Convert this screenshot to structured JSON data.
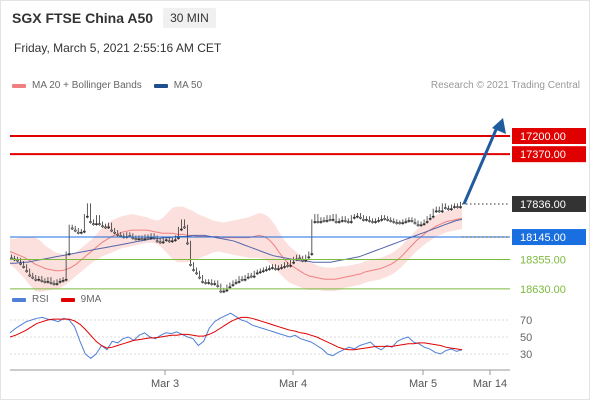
{
  "header": {
    "title": "SGX FTSE China A50",
    "timeframe": "30 MIN",
    "datetime": "Friday, March 5, 2021 2:55:16 AM CET"
  },
  "legend": {
    "items": [
      {
        "label": "MA 20 + Bollinger Bands",
        "color": "#f08080"
      },
      {
        "label": "MA 50",
        "color": "#1f4e8c"
      }
    ],
    "credit": "Research © 2021 Trading Central"
  },
  "rsi_legend": {
    "items": [
      {
        "label": "RSI",
        "color": "#4f7fd6"
      },
      {
        "label": "9MA",
        "color": "#e00000"
      }
    ]
  },
  "colors": {
    "resistance": "#7cba3d",
    "pivot": "#1a6fe0",
    "support": "#e00000",
    "price_tag": "#333333",
    "bollinger_fill": "#fbd5d2",
    "ma20": "#f08080",
    "ma50": "#5566aa",
    "arrow": "#1f5b9e",
    "candle": "#333333"
  },
  "chart_data": [
    {
      "type": "candlestick",
      "title": "SGX FTSE China A50",
      "timeframe": "30 MIN",
      "x_ticks": [
        "Mar 3",
        "Mar 4",
        "Mar 5",
        "Mar 14"
      ],
      "ylim": [
        17100,
        18750
      ],
      "levels": [
        {
          "label": "18630.00",
          "value": 18630,
          "kind": "resistance"
        },
        {
          "label": "18355.00",
          "value": 18355,
          "kind": "resistance"
        },
        {
          "label": "18145.00",
          "value": 18145,
          "kind": "pivot"
        },
        {
          "label": "17836.00",
          "value": 17836,
          "kind": "last"
        },
        {
          "label": "17370.00",
          "value": 17370,
          "kind": "support"
        },
        {
          "label": "17200.00",
          "value": 17200,
          "kind": "support"
        }
      ],
      "close": [
        18340,
        18350,
        18360,
        18390,
        18420,
        18460,
        18500,
        18520,
        18540,
        18530,
        18550,
        18560,
        18540,
        18570,
        18580,
        18560,
        18550,
        18540,
        18300,
        18050,
        18060,
        18080,
        18100,
        18090,
        17950,
        17850,
        18000,
        18020,
        17960,
        18020,
        18040,
        18050,
        18030,
        18080,
        18100,
        18120,
        18130,
        18140,
        18120,
        18130,
        18150,
        18160,
        18150,
        18160,
        18140,
        18150,
        18130,
        18150,
        18180,
        18190,
        18170,
        18160,
        18180,
        18170,
        18150,
        18070,
        18000,
        18050,
        18200,
        18400,
        18450,
        18480,
        18520,
        18560,
        18570,
        18560,
        18580,
        18570,
        18600,
        18650,
        18640,
        18610,
        18590,
        18570,
        18560,
        18530,
        18540,
        18520,
        18500,
        18510,
        18480,
        18470,
        18460,
        18450,
        18440,
        18430,
        18420,
        18440,
        18430,
        18420,
        18400,
        18410,
        18380,
        18350,
        18330,
        18340,
        18360,
        18330,
        18300,
        18000,
        17950,
        18000,
        17980,
        17990,
        17960,
        17980,
        17950,
        18000,
        17990,
        17970,
        17990,
        18000,
        17960,
        17950,
        17940,
        17960,
        17980,
        17970,
        17990,
        18000,
        17990,
        17980,
        17960,
        17970,
        17980,
        17990,
        18000,
        18010,
        18010,
        18000,
        17990,
        17980,
        17990,
        18010,
        18030,
        18020,
        18000,
        17970,
        17950,
        17900,
        17880,
        17900,
        17850,
        17870,
        17880,
        17860,
        17850,
        17860,
        17836
      ],
      "ma20": [
        18280,
        18300,
        18320,
        18340,
        18370,
        18400,
        18420,
        18440,
        18450,
        18460,
        18460,
        18450,
        18430,
        18400,
        18360,
        18320,
        18280,
        18240,
        18200,
        18170,
        18140,
        18120,
        18100,
        18090,
        18080,
        18080,
        18080,
        18080,
        18090,
        18100,
        18110,
        18110,
        18110,
        18120,
        18120,
        18130,
        18130,
        18140,
        18140,
        18140,
        18140,
        18140,
        18150,
        18150,
        18150,
        18150,
        18150,
        18150,
        18140,
        18130,
        18140,
        18170,
        18220,
        18290,
        18350,
        18400,
        18430,
        18460,
        18490,
        18510,
        18520,
        18530,
        18540,
        18540,
        18540,
        18530,
        18520,
        18510,
        18500,
        18490,
        18470,
        18460,
        18450,
        18440,
        18420,
        18400,
        18370,
        18330,
        18280,
        18230,
        18180,
        18140,
        18100,
        18070,
        18040,
        18020,
        18000,
        17990,
        17980,
        17970,
        17970,
        17970,
        17970,
        17970,
        17970,
        17970,
        17970,
        17980,
        17980,
        17980,
        17980,
        17980,
        17990,
        17990,
        17990,
        17990,
        17990,
        17990,
        17980,
        17970,
        17960,
        17950,
        17940,
        17930,
        17920,
        17910,
        17900,
        17890,
        17880,
        17870
      ],
      "ma50": [
        18390,
        18390,
        18380,
        18380,
        18370,
        18360,
        18350,
        18340,
        18330,
        18320,
        18310,
        18300,
        18290,
        18280,
        18270,
        18260,
        18250,
        18240,
        18230,
        18220,
        18210,
        18200,
        18190,
        18180,
        18170,
        18160,
        18160,
        18150,
        18150,
        18140,
        18140,
        18140,
        18130,
        18130,
        18130,
        18140,
        18150,
        18160,
        18170,
        18180,
        18200,
        18220,
        18240,
        18260,
        18280,
        18300,
        18320,
        18330,
        18340,
        18350,
        18360,
        18370,
        18370,
        18380,
        18380,
        18380,
        18380,
        18370,
        18360,
        18350,
        18340,
        18330,
        18310,
        18290,
        18270,
        18250,
        18230,
        18210,
        18190,
        18170,
        18150,
        18130,
        18110,
        18090,
        18070,
        18050,
        18030,
        18010,
        17990,
        17980
      ],
      "bb_width": [
        120,
        140,
        170,
        200,
        230,
        250,
        240,
        210,
        190,
        170,
        160,
        140,
        120,
        110,
        110,
        110,
        110,
        120,
        130,
        140,
        150,
        150,
        150,
        150,
        150,
        140,
        130,
        120,
        110,
        110,
        140,
        190,
        240,
        260,
        260,
        250,
        230,
        210,
        190,
        170,
        150,
        140,
        140,
        150,
        160,
        170,
        180,
        190,
        200,
        210,
        210,
        210,
        200,
        190,
        180,
        170,
        160,
        150,
        140,
        130,
        120,
        110,
        110,
        110,
        110,
        110,
        100,
        100,
        100,
        100,
        100,
        100,
        100,
        100,
        100,
        100,
        100,
        100,
        100,
        100,
        100,
        100,
        100,
        100,
        100,
        100,
        100,
        100,
        100,
        100
      ]
    },
    {
      "type": "line",
      "title": "RSI",
      "ylim": [
        10,
        90
      ],
      "y_ticks": [
        "70",
        "50",
        "30"
      ],
      "series": [
        {
          "name": "RSI",
          "values": [
            55,
            60,
            64,
            68,
            70,
            72,
            73,
            71,
            70,
            68,
            72,
            70,
            62,
            45,
            30,
            25,
            30,
            40,
            35,
            45,
            43,
            48,
            50,
            46,
            52,
            55,
            50,
            48,
            52,
            55,
            54,
            56,
            53,
            50,
            48,
            40,
            45,
            60,
            68,
            72,
            75,
            78,
            74,
            70,
            68,
            64,
            62,
            60,
            58,
            56,
            54,
            52,
            50,
            52,
            48,
            46,
            44,
            40,
            36,
            30,
            28,
            32,
            35,
            38,
            36,
            40,
            42,
            44,
            38,
            35,
            40,
            38,
            45,
            48,
            50,
            44,
            42,
            38,
            36,
            32,
            30,
            34,
            36,
            33,
            35
          ]
        },
        {
          "name": "9MA",
          "values": [
            50,
            52,
            55,
            58,
            62,
            66,
            68,
            70,
            71,
            71,
            71,
            71,
            69,
            65,
            59,
            52,
            45,
            40,
            37,
            38,
            40,
            42,
            44,
            46,
            47,
            48,
            49,
            49,
            50,
            51,
            52,
            52,
            53,
            53,
            52,
            51,
            51,
            53,
            56,
            60,
            64,
            68,
            71,
            73,
            73,
            72,
            70,
            68,
            66,
            64,
            62,
            60,
            58,
            57,
            55,
            54,
            52,
            50,
            47,
            44,
            41,
            38,
            36,
            35,
            35,
            36,
            37,
            38,
            39,
            39,
            39,
            39,
            40,
            41,
            42,
            42,
            43,
            43,
            42,
            41,
            40,
            38,
            37,
            36,
            35
          ]
        }
      ]
    }
  ]
}
